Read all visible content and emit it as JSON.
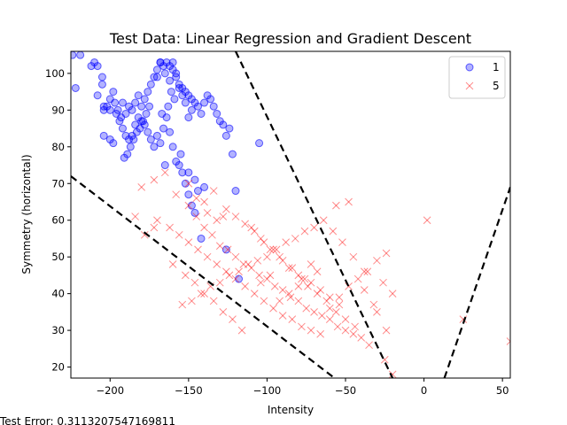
{
  "chart_data": {
    "type": "scatter",
    "title": "Test Data: Linear Regression and Gradient Descent",
    "xlabel": "Intensity",
    "ylabel": "Symmetry (horizontal)",
    "xlim": [
      -225,
      55
    ],
    "ylim": [
      17,
      106
    ],
    "xticks": [
      -200,
      -150,
      -100,
      -50,
      0,
      50
    ],
    "yticks": [
      20,
      30,
      40,
      50,
      60,
      70,
      80,
      90,
      100
    ],
    "legend_position": "top-right",
    "footer_text": "Test Error: 0.3113207547169811",
    "colors": {
      "class1": "#0000ff",
      "class5": "#ff0000",
      "boundary": "#000000"
    },
    "series": [
      {
        "name": "1",
        "marker": "circle",
        "points": [
          [
            -224,
            105
          ],
          [
            -219,
            105
          ],
          [
            -222,
            96
          ],
          [
            -210,
            103
          ],
          [
            -212,
            102
          ],
          [
            -208,
            102
          ],
          [
            -205,
            99
          ],
          [
            -208,
            94
          ],
          [
            -205,
            97
          ],
          [
            -204,
            91
          ],
          [
            -200,
            93
          ],
          [
            -198,
            95
          ],
          [
            -197,
            92
          ],
          [
            -195,
            90
          ],
          [
            -193,
            88
          ],
          [
            -192,
            92
          ],
          [
            -190,
            89
          ],
          [
            -188,
            91
          ],
          [
            -186,
            90
          ],
          [
            -184,
            92
          ],
          [
            -182,
            94
          ],
          [
            -180,
            91
          ],
          [
            -178,
            93
          ],
          [
            -176,
            95
          ],
          [
            -174,
            97
          ],
          [
            -172,
            99
          ],
          [
            -170,
            101
          ],
          [
            -168,
            103
          ],
          [
            -166,
            102
          ],
          [
            -164,
            103
          ],
          [
            -162,
            102
          ],
          [
            -160,
            101
          ],
          [
            -158,
            99
          ],
          [
            -156,
            97
          ],
          [
            -154,
            96
          ],
          [
            -152,
            95
          ],
          [
            -150,
            94
          ],
          [
            -148,
            93
          ],
          [
            -146,
            92
          ],
          [
            -144,
            91
          ],
          [
            -142,
            89
          ],
          [
            -140,
            92
          ],
          [
            -138,
            94
          ],
          [
            -136,
            93
          ],
          [
            -134,
            91
          ],
          [
            -132,
            89
          ],
          [
            -130,
            87
          ],
          [
            -128,
            86
          ],
          [
            -126,
            83
          ],
          [
            -124,
            85
          ],
          [
            -122,
            78
          ],
          [
            -120,
            68
          ],
          [
            -196,
            89
          ],
          [
            -194,
            87
          ],
          [
            -192,
            85
          ],
          [
            -190,
            83
          ],
          [
            -188,
            82
          ],
          [
            -186,
            83
          ],
          [
            -184,
            86
          ],
          [
            -182,
            88
          ],
          [
            -180,
            87
          ],
          [
            -178,
            86
          ],
          [
            -176,
            84
          ],
          [
            -174,
            82
          ],
          [
            -172,
            80
          ],
          [
            -170,
            83
          ],
          [
            -168,
            81
          ],
          [
            -166,
            85
          ],
          [
            -164,
            88
          ],
          [
            -162,
            84
          ],
          [
            -160,
            80
          ],
          [
            -158,
            76
          ],
          [
            -156,
            75
          ],
          [
            -154,
            73
          ],
          [
            -152,
            70
          ],
          [
            -150,
            67
          ],
          [
            -148,
            64
          ],
          [
            -146,
            62
          ],
          [
            -144,
            68
          ],
          [
            -142,
            55
          ],
          [
            -140,
            69
          ],
          [
            -200,
            90
          ],
          [
            -202,
            91
          ],
          [
            -204,
            90
          ],
          [
            -200,
            82
          ],
          [
            -204,
            83
          ],
          [
            -198,
            81
          ],
          [
            -170,
            99
          ],
          [
            -168,
            103
          ],
          [
            -165,
            100
          ],
          [
            -162,
            98
          ],
          [
            -160,
            103
          ],
          [
            -158,
            100
          ],
          [
            -156,
            96
          ],
          [
            -154,
            94
          ],
          [
            -152,
            92
          ],
          [
            -150,
            88
          ],
          [
            -148,
            90
          ],
          [
            -175,
            91
          ],
          [
            -177,
            89
          ],
          [
            -179,
            87
          ],
          [
            -181,
            85
          ],
          [
            -183,
            84
          ],
          [
            -185,
            82
          ],
          [
            -187,
            80
          ],
          [
            -189,
            78
          ],
          [
            -191,
            77
          ],
          [
            -150,
            73
          ],
          [
            -146,
            71
          ],
          [
            -126,
            52
          ],
          [
            -105,
            81
          ],
          [
            -118,
            44
          ],
          [
            -165,
            75
          ],
          [
            -155,
            78
          ],
          [
            -167,
            89
          ],
          [
            -163,
            91
          ],
          [
            -161,
            95
          ],
          [
            -159,
            93
          ]
        ]
      },
      {
        "name": "5",
        "marker": "x",
        "points": [
          [
            -180,
            69
          ],
          [
            -172,
            71
          ],
          [
            -165,
            73
          ],
          [
            -158,
            67
          ],
          [
            -150,
            64
          ],
          [
            -145,
            61
          ],
          [
            -140,
            58
          ],
          [
            -135,
            56
          ],
          [
            -130,
            53
          ],
          [
            -125,
            52
          ],
          [
            -120,
            50
          ],
          [
            -115,
            48
          ],
          [
            -110,
            47
          ],
          [
            -105,
            45
          ],
          [
            -100,
            44
          ],
          [
            -95,
            42
          ],
          [
            -90,
            41
          ],
          [
            -85,
            39
          ],
          [
            -80,
            38
          ],
          [
            -75,
            36
          ],
          [
            -70,
            35
          ],
          [
            -65,
            34
          ],
          [
            -60,
            33
          ],
          [
            -55,
            31
          ],
          [
            -50,
            30
          ],
          [
            -45,
            29
          ],
          [
            -40,
            28
          ],
          [
            -35,
            26
          ],
          [
            -170,
            60
          ],
          [
            -162,
            58
          ],
          [
            -156,
            56
          ],
          [
            -150,
            54
          ],
          [
            -144,
            52
          ],
          [
            -138,
            50
          ],
          [
            -132,
            48
          ],
          [
            -126,
            46
          ],
          [
            -120,
            44
          ],
          [
            -114,
            42
          ],
          [
            -108,
            40
          ],
          [
            -102,
            38
          ],
          [
            -96,
            36
          ],
          [
            -90,
            34
          ],
          [
            -84,
            33
          ],
          [
            -78,
            31
          ],
          [
            -72,
            30
          ],
          [
            -66,
            29
          ],
          [
            -60,
            36
          ],
          [
            -54,
            39
          ],
          [
            -48,
            42
          ],
          [
            -42,
            44
          ],
          [
            -36,
            46
          ],
          [
            -30,
            49
          ],
          [
            -24,
            51
          ],
          [
            -160,
            48
          ],
          [
            -152,
            45
          ],
          [
            -146,
            43
          ],
          [
            -140,
            40
          ],
          [
            -134,
            38
          ],
          [
            -128,
            35
          ],
          [
            -122,
            33
          ],
          [
            -116,
            30
          ],
          [
            -110,
            58
          ],
          [
            -104,
            55
          ],
          [
            -98,
            52
          ],
          [
            -92,
            50
          ],
          [
            -86,
            47
          ],
          [
            -80,
            45
          ],
          [
            -74,
            42
          ],
          [
            -68,
            40
          ],
          [
            -62,
            38
          ],
          [
            -56,
            35
          ],
          [
            -50,
            33
          ],
          [
            -44,
            31
          ],
          [
            -38,
            41
          ],
          [
            -32,
            37
          ],
          [
            -26,
            43
          ],
          [
            -20,
            40
          ],
          [
            -138,
            62
          ],
          [
            -132,
            60
          ],
          [
            -126,
            63
          ],
          [
            -120,
            61
          ],
          [
            -114,
            59
          ],
          [
            -108,
            57
          ],
          [
            -102,
            54
          ],
          [
            -96,
            52
          ],
          [
            -90,
            49
          ],
          [
            -84,
            47
          ],
          [
            -78,
            44
          ],
          [
            -72,
            43
          ],
          [
            -66,
            41
          ],
          [
            -60,
            39
          ],
          [
            -54,
            37
          ],
          [
            -48,
            65
          ],
          [
            -56,
            64
          ],
          [
            -64,
            60
          ],
          [
            -70,
            58
          ],
          [
            -76,
            57
          ],
          [
            -82,
            55
          ],
          [
            -88,
            54
          ],
          [
            -94,
            52
          ],
          [
            -100,
            50
          ],
          [
            -106,
            49
          ],
          [
            -112,
            48
          ],
          [
            -118,
            46
          ],
          [
            -124,
            45
          ],
          [
            -130,
            43
          ],
          [
            -136,
            42
          ],
          [
            -142,
            40
          ],
          [
            -148,
            38
          ],
          [
            -154,
            37
          ],
          [
            -172,
            58
          ],
          [
            -178,
            56
          ],
          [
            -184,
            61
          ],
          [
            2,
            60
          ],
          [
            25,
            33
          ],
          [
            55,
            27
          ],
          [
            -25,
            22
          ],
          [
            -20,
            18
          ],
          [
            -24,
            30
          ],
          [
            -30,
            35
          ],
          [
            -38,
            46
          ],
          [
            -45,
            50
          ],
          [
            -52,
            54
          ],
          [
            -58,
            57
          ],
          [
            -150,
            70
          ],
          [
            -145,
            66
          ],
          [
            -140,
            65
          ],
          [
            -134,
            68
          ],
          [
            -128,
            61
          ],
          [
            -76,
            44
          ],
          [
            -72,
            48
          ],
          [
            -68,
            46
          ],
          [
            -80,
            42
          ],
          [
            -86,
            40
          ],
          [
            -92,
            38
          ],
          [
            -98,
            45
          ],
          [
            -104,
            43
          ]
        ]
      }
    ],
    "decision_lines": [
      {
        "from": [
          -225,
          72
        ],
        "to": [
          -57,
          17
        ]
      },
      {
        "from": [
          -120,
          106
        ],
        "to": [
          -20,
          17
        ]
      },
      {
        "from": [
          13,
          17
        ],
        "to": [
          55,
          69
        ]
      }
    ]
  }
}
